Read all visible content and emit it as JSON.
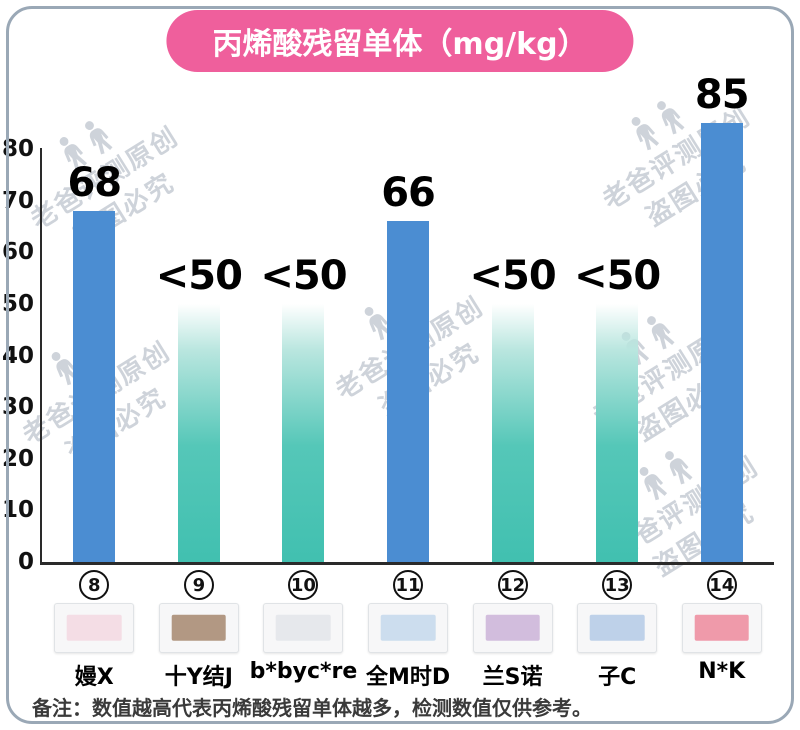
{
  "header": {
    "title": "丙烯酸残留单体（mg/kg）"
  },
  "watermark": {
    "line1": "老爸评测原创",
    "line2": "盗图必究"
  },
  "footnote": "备注：数值越高代表丙烯酸残留单体越多，检测数值仅供参考。",
  "colors": {
    "title_bg": "#ef5f9c",
    "bar_blue": "#4b8dd2",
    "bar_teal": "#45c1b1",
    "frame_border": "#9aa8b6",
    "watermark_gray": "#c6ccd4"
  },
  "chart_data": {
    "type": "bar",
    "title": "丙烯酸残留单体（mg/kg）",
    "categories": [
      "嫚X",
      "十Y结J",
      "b*byc*re",
      "全M时D",
      "兰S诺",
      "子C",
      "N*K"
    ],
    "values": [
      68,
      50,
      50,
      66,
      50,
      50,
      85
    ],
    "value_labels": [
      "68",
      "<50",
      "<50",
      "66",
      "<50",
      "<50",
      "85"
    ],
    "bar_styles": [
      "solid",
      "fade",
      "fade",
      "solid",
      "fade",
      "fade",
      "solid"
    ],
    "xlabel": "",
    "ylabel": "",
    "ylim": [
      0,
      80
    ],
    "yticks": [
      0,
      10,
      20,
      30,
      40,
      50,
      60,
      70,
      80
    ],
    "grid": false,
    "legend": "none"
  },
  "products": [
    {
      "num": "8",
      "accent": "#f3c9d6"
    },
    {
      "num": "9",
      "accent": "#7a4a22"
    },
    {
      "num": "10",
      "accent": "#d9dde2"
    },
    {
      "num": "11",
      "accent": "#a9c9e6"
    },
    {
      "num": "12",
      "accent": "#b48ec6"
    },
    {
      "num": "13",
      "accent": "#8fb3dc"
    },
    {
      "num": "14",
      "accent": "#e94f6a"
    }
  ]
}
